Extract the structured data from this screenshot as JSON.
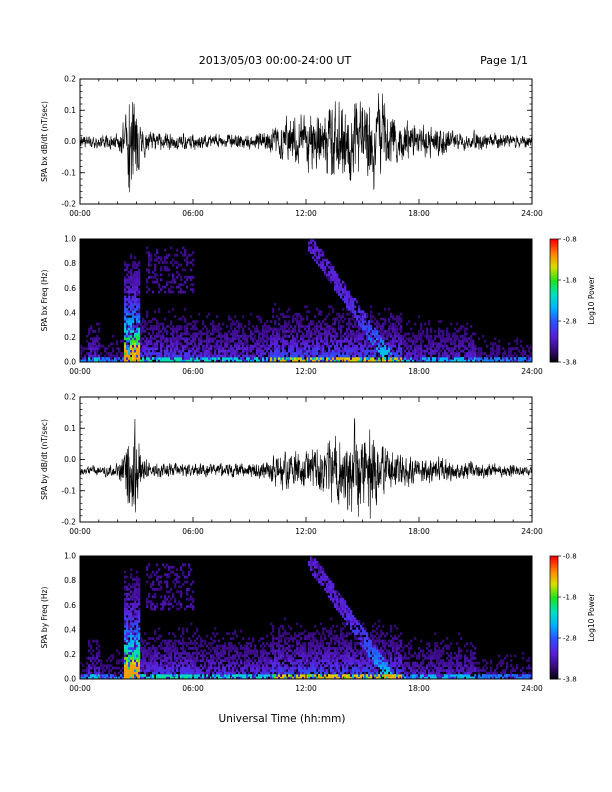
{
  "header": {
    "title": "2013/05/03  00:00-24:00 UT",
    "page": "Page 1/1"
  },
  "xlabel": "Universal Time (hh:mm)",
  "colors": {
    "background": "#ffffff",
    "waveform": "#000000",
    "spectrogram_floor": "#000000",
    "colormap": [
      "#000000",
      "#3a0a82",
      "#5a20d8",
      "#2a50ff",
      "#00b0ff",
      "#00e0c0",
      "#20e020",
      "#d8e000",
      "#ff8000",
      "#ff0000"
    ]
  },
  "chart_data": [
    {
      "type": "line",
      "id": "bx_wave",
      "ylabel": "SPA bx dB/dt (nT/sec)",
      "xlim": [
        0,
        24
      ],
      "ylim": [
        -0.2,
        0.2
      ],
      "yticks": [
        "0.2",
        "0.1",
        "0.0",
        "-0.1",
        "-0.2"
      ],
      "xticks": [
        "00:00",
        "06:00",
        "12:00",
        "18:00",
        "24:00"
      ],
      "offset": 0.0,
      "envelope": {
        "hour": [
          0,
          1,
          2,
          2.4,
          2.6,
          2.8,
          3.0,
          3.3,
          3.8,
          5,
          7,
          9,
          10,
          10.5,
          11,
          12,
          13,
          13.5,
          14,
          15,
          15.5,
          16,
          17,
          18,
          19,
          20,
          21,
          22,
          23,
          24
        ],
        "amp": [
          0.03,
          0.03,
          0.04,
          0.1,
          0.25,
          0.25,
          0.22,
          0.08,
          0.05,
          0.04,
          0.035,
          0.04,
          0.05,
          0.08,
          0.12,
          0.15,
          0.17,
          0.2,
          0.2,
          0.22,
          0.25,
          0.2,
          0.1,
          0.07,
          0.08,
          0.04,
          0.05,
          0.04,
          0.03,
          0.03
        ]
      }
    },
    {
      "type": "heatmap",
      "id": "bx_freq",
      "ylabel": "SPA bx Freq (Hz)",
      "xlim": [
        0,
        24
      ],
      "ylim": [
        0,
        1.0
      ],
      "yticks": [
        "1.0",
        "0.8",
        "0.6",
        "0.4",
        "0.2",
        "0.0"
      ],
      "xticks": [
        "00:00",
        "06:00",
        "12:00",
        "18:00",
        "24:00"
      ],
      "colorbar": {
        "label": "Log10 Power",
        "range": [
          -3.8,
          -0.8
        ],
        "ticks": [
          "-0.8",
          "-1.8",
          "-2.8",
          "-3.8"
        ]
      }
    },
    {
      "type": "line",
      "id": "by_wave",
      "ylabel": "SPA by dB/dt (nT/sec)",
      "xlim": [
        0,
        24
      ],
      "ylim": [
        -0.2,
        0.2
      ],
      "yticks": [
        "0.2",
        "0.1",
        "0.0",
        "-0.1",
        "-0.2"
      ],
      "xticks": [
        "00:00",
        "06:00",
        "12:00",
        "18:00",
        "24:00"
      ],
      "offset": -0.035,
      "envelope": {
        "hour": [
          0,
          1,
          2,
          2.4,
          2.6,
          2.8,
          3.0,
          3.3,
          3.8,
          5,
          7,
          9,
          10,
          10.5,
          11,
          12,
          13,
          13.5,
          14,
          15,
          15.5,
          16,
          17,
          18,
          19,
          20,
          21,
          22,
          23,
          24
        ],
        "amp": [
          0.02,
          0.025,
          0.035,
          0.1,
          0.25,
          0.25,
          0.2,
          0.07,
          0.04,
          0.035,
          0.03,
          0.035,
          0.05,
          0.1,
          0.09,
          0.1,
          0.12,
          0.17,
          0.2,
          0.24,
          0.22,
          0.12,
          0.08,
          0.06,
          0.07,
          0.04,
          0.04,
          0.035,
          0.03,
          0.025
        ]
      }
    },
    {
      "type": "heatmap",
      "id": "by_freq",
      "ylabel": "SPA by Freq (Hz)",
      "xlim": [
        0,
        24
      ],
      "ylim": [
        0,
        1.0
      ],
      "yticks": [
        "1.0",
        "0.8",
        "0.6",
        "0.4",
        "0.2",
        "0.0"
      ],
      "xticks": [
        "00:00",
        "06:00",
        "12:00",
        "18:00",
        "24:00"
      ],
      "colorbar": {
        "label": "Log10 Power",
        "range": [
          -3.8,
          -0.8
        ],
        "ticks": [
          "-0.8",
          "-1.8",
          "-2.8",
          "-3.8"
        ]
      }
    }
  ]
}
